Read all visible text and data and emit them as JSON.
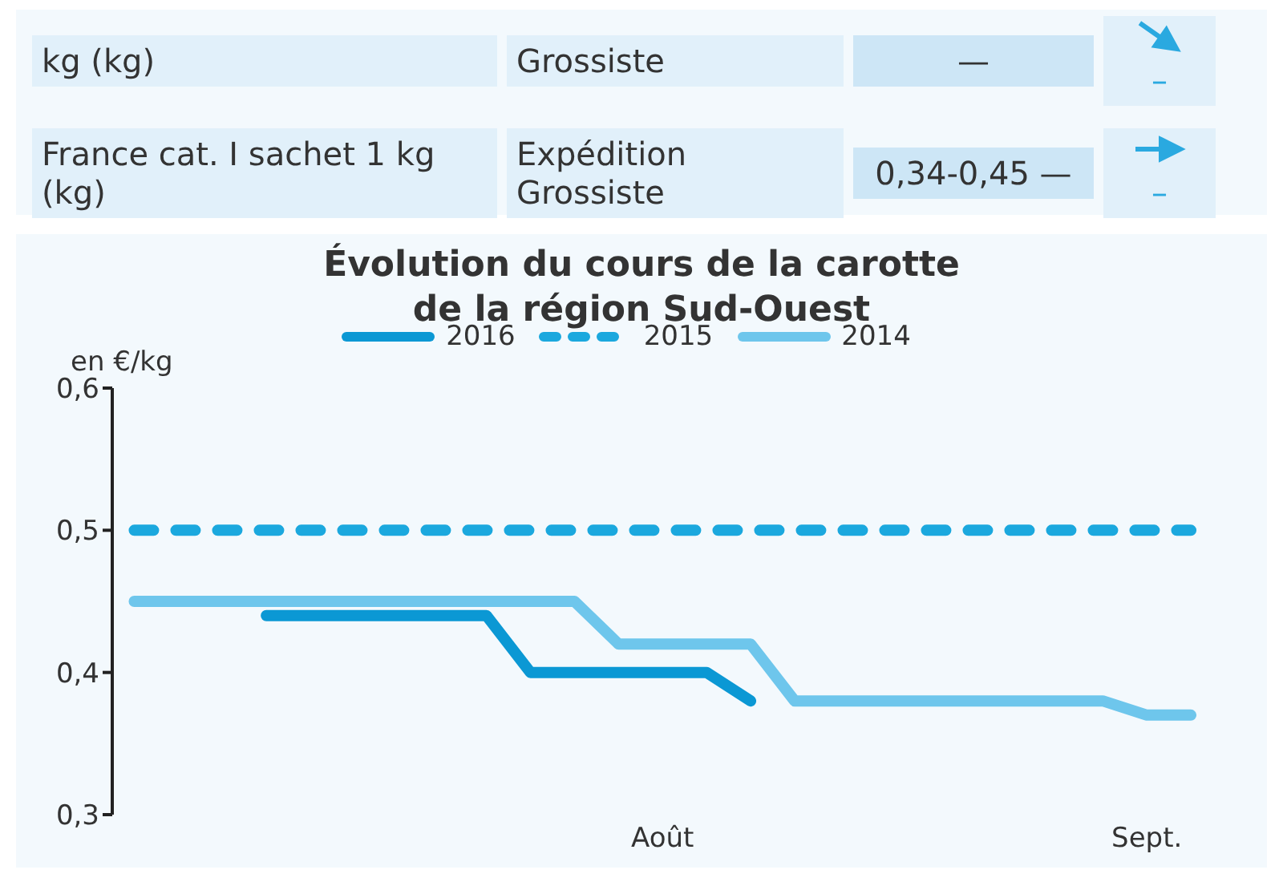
{
  "chart_data": [
    {
      "type": "other",
      "annotations": [
        "kg (kg)",
        "Grossiste",
        "—",
        "–",
        "France cat. I sachet 1 kg (kg)",
        "Expédition Grossiste",
        "0,34-0,45 —",
        "–"
      ]
    },
    {
      "type": "line",
      "title": "Évolution du cours de la carotte de la région Sud-Ouest",
      "ylabel": "en €/kg",
      "categories": [
        null,
        null,
        null,
        null,
        null,
        null,
        null,
        null,
        null,
        null,
        null,
        null,
        "Août",
        null,
        null,
        null,
        null,
        null,
        null,
        null,
        null,
        null,
        null,
        "Sept.",
        null
      ],
      "series": [
        {
          "name": "2016",
          "color": "#0b98d4",
          "line_style": "solid",
          "values": [
            null,
            null,
            null,
            0.44,
            0.44,
            0.44,
            0.44,
            0.44,
            0.44,
            0.4,
            0.4,
            0.4,
            0.4,
            0.4,
            0.38,
            null,
            null,
            null,
            null,
            null,
            null,
            null,
            null,
            null,
            null
          ]
        },
        {
          "name": "2015",
          "color": "#1ba8de",
          "line_style": "dashed",
          "values": [
            0.5,
            0.5,
            0.5,
            0.5,
            0.5,
            0.5,
            0.5,
            0.5,
            0.5,
            0.5,
            0.5,
            0.5,
            0.5,
            0.5,
            0.5,
            0.5,
            0.5,
            0.5,
            0.5,
            0.5,
            0.5,
            0.5,
            0.5,
            0.5,
            0.5
          ]
        },
        {
          "name": "2014",
          "color": "#6ec6ec",
          "line_style": "solid",
          "values": [
            0.45,
            0.45,
            0.45,
            0.45,
            0.45,
            0.45,
            0.45,
            0.45,
            0.45,
            0.45,
            0.45,
            0.42,
            0.42,
            0.42,
            0.42,
            0.38,
            0.38,
            0.38,
            0.38,
            0.38,
            0.38,
            0.38,
            0.38,
            0.37,
            0.37
          ]
        }
      ],
      "ylim": [
        0.3,
        0.6
      ],
      "yticks": [
        {
          "value": 0.3,
          "label": "0,3"
        },
        {
          "value": 0.4,
          "label": "0,4"
        },
        {
          "value": 0.5,
          "label": "0,5"
        },
        {
          "value": 0.6,
          "label": "0,6"
        }
      ],
      "legend": "top",
      "marker": "none"
    }
  ]
}
